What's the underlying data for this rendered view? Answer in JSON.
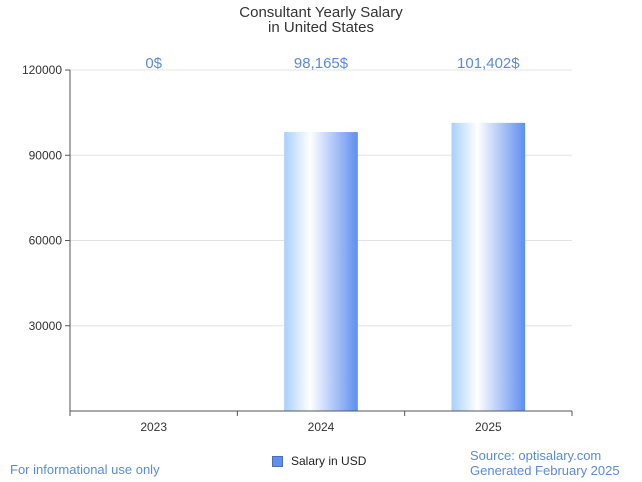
{
  "title": [
    "Consultant Yearly Salary",
    "in United States"
  ],
  "chart_data": {
    "type": "bar",
    "categories": [
      "2023",
      "2024",
      "2025"
    ],
    "series": [
      {
        "name": "Salary in USD",
        "values": [
          0,
          98165,
          101402
        ]
      }
    ],
    "data_labels": [
      "0$",
      "98,165$",
      "101,402$"
    ],
    "y_ticks": [
      "30000",
      "60000",
      "90000",
      "120000"
    ],
    "ylim": [
      0,
      120000
    ],
    "grid": true,
    "legend_position": "bottom-center"
  },
  "colors": {
    "bar_light": "#ffffff",
    "bar_mid": "#a8d0fb",
    "bar_dark": "#5e8ef0",
    "label": "#5b8bd6",
    "grid": "#e3e3e3",
    "axis": "#555555"
  },
  "footer": {
    "left": "For informational use only",
    "source": "Source: optisalary.com",
    "generated": "Generated February 2025"
  }
}
